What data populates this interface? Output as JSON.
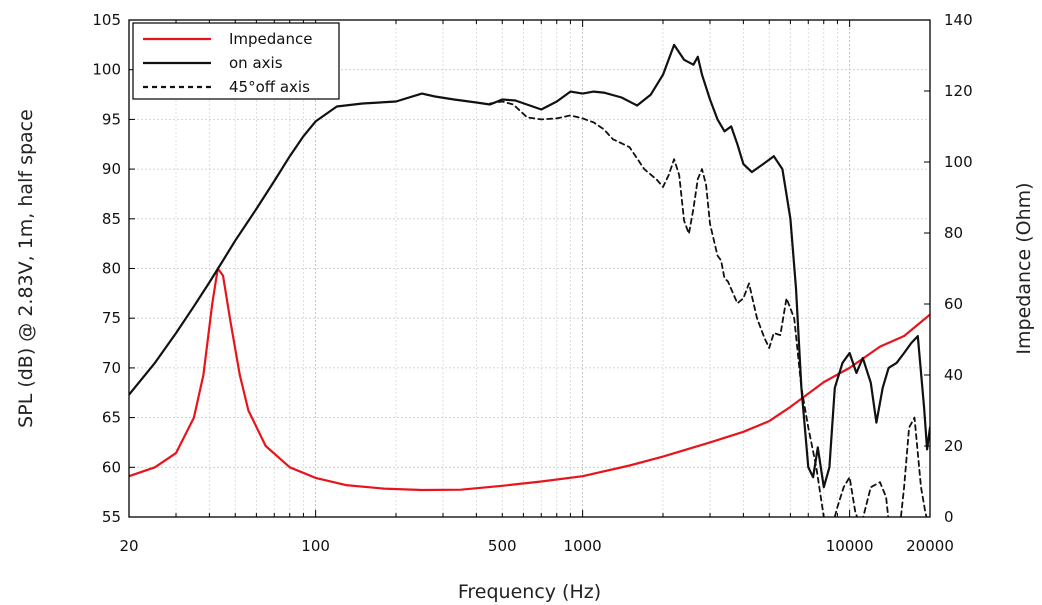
{
  "chart_data": {
    "type": "line",
    "xlabel": "Frequency (Hz)",
    "ylabel_left": "SPL (dB) @ 2.83V, 1m, half space",
    "ylabel_right": "Impedance (Ohm)",
    "x_scale": "log",
    "xlim": [
      20,
      20000
    ],
    "ylim_left": [
      55,
      105
    ],
    "ylim_right": [
      0,
      140
    ],
    "x_ticks": [
      {
        "value": 20,
        "label": "20"
      },
      {
        "value": 100,
        "label": "100"
      },
      {
        "value": 500,
        "label": "500"
      },
      {
        "value": 1000,
        "label": "1000"
      },
      {
        "value": 10000,
        "label": "10000"
      },
      {
        "value": 20000,
        "label": "20000"
      }
    ],
    "y_ticks_left": [
      "55",
      "60",
      "65",
      "70",
      "75",
      "80",
      "85",
      "90",
      "95",
      "100",
      "105"
    ],
    "y_ticks_right": [
      "0",
      "20",
      "40",
      "60",
      "80",
      "100",
      "120",
      "140"
    ],
    "grid": true,
    "legend_position": "top-left",
    "series": [
      {
        "name": "Impedance",
        "axis": "right",
        "color": "#e8141b",
        "style": "solid",
        "points": [
          [
            20,
            11.5
          ],
          [
            25,
            14
          ],
          [
            30,
            18
          ],
          [
            35,
            28
          ],
          [
            38,
            40
          ],
          [
            41,
            60
          ],
          [
            43,
            70
          ],
          [
            45,
            68
          ],
          [
            48,
            55
          ],
          [
            52,
            40
          ],
          [
            56,
            30
          ],
          [
            65,
            20
          ],
          [
            80,
            14
          ],
          [
            100,
            11
          ],
          [
            130,
            9
          ],
          [
            180,
            8
          ],
          [
            250,
            7.6
          ],
          [
            350,
            7.7
          ],
          [
            500,
            8.8
          ],
          [
            700,
            10
          ],
          [
            1000,
            11.5
          ],
          [
            1500,
            14.5
          ],
          [
            2000,
            17
          ],
          [
            3000,
            21
          ],
          [
            4000,
            24
          ],
          [
            5000,
            27
          ],
          [
            6000,
            31
          ],
          [
            8000,
            38
          ],
          [
            10000,
            42
          ],
          [
            13000,
            48
          ],
          [
            16000,
            51
          ],
          [
            20000,
            57
          ]
        ]
      },
      {
        "name": "on axis",
        "axis": "left",
        "color": "#111111",
        "style": "solid",
        "points": [
          [
            20,
            67.3
          ],
          [
            25,
            70.5
          ],
          [
            30,
            73.5
          ],
          [
            35,
            76.2
          ],
          [
            40,
            78.6
          ],
          [
            45,
            80.8
          ],
          [
            50,
            82.8
          ],
          [
            60,
            86
          ],
          [
            70,
            88.8
          ],
          [
            80,
            91.3
          ],
          [
            90,
            93.3
          ],
          [
            100,
            94.8
          ],
          [
            120,
            96.3
          ],
          [
            150,
            96.6
          ],
          [
            200,
            96.8
          ],
          [
            250,
            97.6
          ],
          [
            280,
            97.3
          ],
          [
            330,
            97
          ],
          [
            400,
            96.7
          ],
          [
            450,
            96.5
          ],
          [
            500,
            97
          ],
          [
            560,
            96.9
          ],
          [
            650,
            96.3
          ],
          [
            700,
            96
          ],
          [
            800,
            96.8
          ],
          [
            900,
            97.8
          ],
          [
            1000,
            97.6
          ],
          [
            1100,
            97.8
          ],
          [
            1200,
            97.7
          ],
          [
            1400,
            97.2
          ],
          [
            1600,
            96.4
          ],
          [
            1800,
            97.5
          ],
          [
            2000,
            99.5
          ],
          [
            2200,
            102.5
          ],
          [
            2400,
            101
          ],
          [
            2600,
            100.5
          ],
          [
            2700,
            101.3
          ],
          [
            2800,
            99.5
          ],
          [
            3000,
            97
          ],
          [
            3200,
            95
          ],
          [
            3400,
            93.8
          ],
          [
            3600,
            94.3
          ],
          [
            3800,
            92.5
          ],
          [
            4000,
            90.5
          ],
          [
            4300,
            89.7
          ],
          [
            4800,
            90.6
          ],
          [
            5200,
            91.3
          ],
          [
            5600,
            90
          ],
          [
            6000,
            85
          ],
          [
            6300,
            78
          ],
          [
            6600,
            68
          ],
          [
            7000,
            60
          ],
          [
            7300,
            59
          ],
          [
            7600,
            62
          ],
          [
            8000,
            58
          ],
          [
            8400,
            60
          ],
          [
            8800,
            68
          ],
          [
            9400,
            70.5
          ],
          [
            10000,
            71.5
          ],
          [
            10600,
            69.5
          ],
          [
            11200,
            71
          ],
          [
            12000,
            68.5
          ],
          [
            12600,
            64.5
          ],
          [
            13300,
            68
          ],
          [
            14000,
            70
          ],
          [
            15000,
            70.5
          ],
          [
            16000,
            71.5
          ],
          [
            17000,
            72.5
          ],
          [
            18000,
            73.2
          ],
          [
            19000,
            66
          ],
          [
            19500,
            61.8
          ],
          [
            20000,
            64
          ]
        ]
      },
      {
        "name": "45°off axis",
        "axis": "left",
        "color": "#111111",
        "style": "dashed",
        "points": [
          [
            450,
            96.6
          ],
          [
            500,
            96.8
          ],
          [
            550,
            96.5
          ],
          [
            620,
            95.2
          ],
          [
            700,
            95
          ],
          [
            800,
            95.1
          ],
          [
            900,
            95.4
          ],
          [
            1000,
            95.1
          ],
          [
            1100,
            94.7
          ],
          [
            1200,
            94
          ],
          [
            1300,
            93
          ],
          [
            1400,
            92.6
          ],
          [
            1500,
            92.2
          ],
          [
            1700,
            90
          ],
          [
            1900,
            88.9
          ],
          [
            2000,
            88.2
          ],
          [
            2100,
            89.4
          ],
          [
            2200,
            91
          ],
          [
            2300,
            89.4
          ],
          [
            2400,
            84.8
          ],
          [
            2500,
            83.5
          ],
          [
            2600,
            86
          ],
          [
            2700,
            89
          ],
          [
            2800,
            90
          ],
          [
            2900,
            88.4
          ],
          [
            3000,
            84.5
          ],
          [
            3200,
            81.3
          ],
          [
            3300,
            80.8
          ],
          [
            3400,
            79
          ],
          [
            3500,
            78.7
          ],
          [
            3800,
            76.5
          ],
          [
            4000,
            77
          ],
          [
            4200,
            78.5
          ],
          [
            4500,
            75
          ],
          [
            4800,
            73
          ],
          [
            5000,
            72
          ],
          [
            5200,
            73.5
          ],
          [
            5500,
            73.3
          ],
          [
            5800,
            77
          ],
          [
            6200,
            75
          ],
          [
            6600,
            68
          ],
          [
            7000,
            64
          ],
          [
            7500,
            60
          ],
          [
            8000,
            55
          ],
          [
            8500,
            53.5
          ],
          [
            9000,
            56
          ],
          [
            9500,
            58
          ],
          [
            10000,
            59
          ],
          [
            10500,
            55.5
          ],
          [
            11000,
            54
          ],
          [
            12000,
            58
          ],
          [
            13000,
            58.5
          ],
          [
            13700,
            57
          ],
          [
            14200,
            53
          ],
          [
            14800,
            54
          ],
          [
            15500,
            54.5
          ],
          [
            16000,
            58
          ],
          [
            16700,
            64
          ],
          [
            17500,
            65
          ],
          [
            18500,
            58
          ],
          [
            19200,
            55.5
          ],
          [
            20000,
            53.5
          ]
        ]
      }
    ]
  }
}
